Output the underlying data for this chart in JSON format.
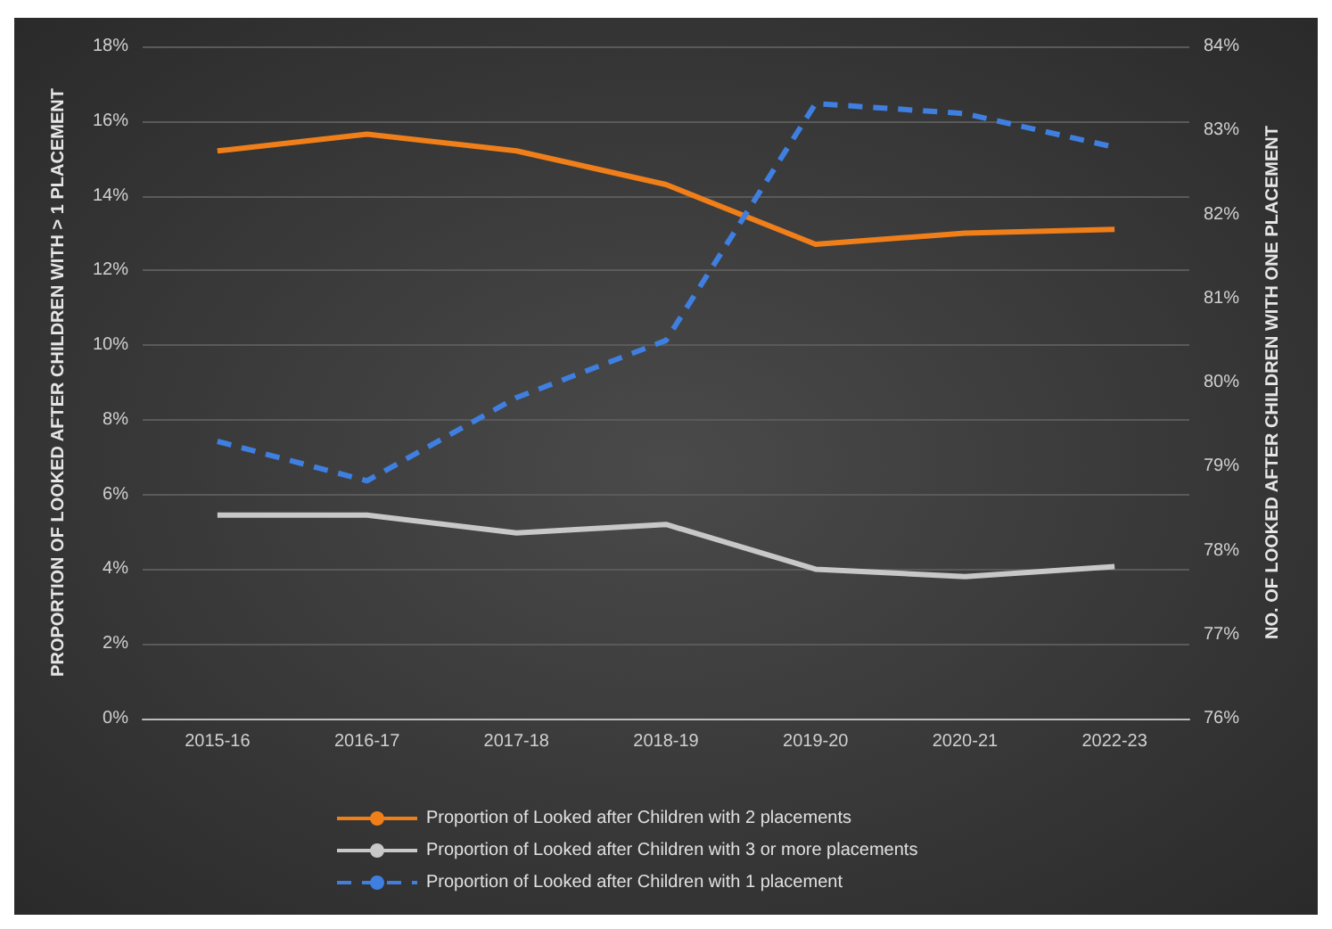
{
  "chart_data": {
    "type": "line",
    "ylabel": "PROPORTION OF LOOKED AFTER CHILDREN WITH > 1 PLACEMENT",
    "y2label": "NO. OF LOOKED AFTER CHILDREN WITH ONE PLACEMENT",
    "categories": [
      "2015-16",
      "2016-17",
      "2017-18",
      "2018-19",
      "2019-20",
      "2020-21",
      "2022-23"
    ],
    "series": [
      {
        "name": "Proportion of Looked after Children with 2 placements",
        "color": "#f07f1a",
        "values": [
          15.2,
          15.65,
          15.2,
          14.3,
          12.7,
          13.0,
          13.1
        ]
      },
      {
        "name": "Proportion of Looked after Children with 3 or more placements",
        "color": "#c8c8c8",
        "values": [
          5.45,
          5.45,
          4.97,
          5.2,
          4.0,
          3.8,
          4.07
        ]
      },
      {
        "name": "Proportion of Looked after Children with 1 placement",
        "color": "#3f7fe0",
        "axis": "y2",
        "line_style": "dashed",
        "values": [
          79.3,
          78.83,
          79.82,
          80.5,
          83.32,
          83.2,
          82.8
        ]
      }
    ],
    "ylim": [
      0,
      18
    ],
    "yticks": [
      {
        "value": 0,
        "label": "0%"
      },
      {
        "value": 2,
        "label": "2%"
      },
      {
        "value": 4,
        "label": "4%"
      },
      {
        "value": 6,
        "label": "6%"
      },
      {
        "value": 8,
        "label": "8%"
      },
      {
        "value": 10,
        "label": "10%"
      },
      {
        "value": 12,
        "label": "12%"
      },
      {
        "value": 14,
        "label": "14%"
      },
      {
        "value": 16,
        "label": "16%"
      },
      {
        "value": 18,
        "label": "18%"
      }
    ],
    "y2lim": [
      76,
      84
    ],
    "y2ticks": [
      {
        "value": 76,
        "label": "76%"
      },
      {
        "value": 77,
        "label": "77%"
      },
      {
        "value": 78,
        "label": "78%"
      },
      {
        "value": 79,
        "label": "79%"
      },
      {
        "value": 80,
        "label": "80%"
      },
      {
        "value": 81,
        "label": "81%"
      },
      {
        "value": 82,
        "label": "82%"
      },
      {
        "value": 83,
        "label": "83%"
      },
      {
        "value": 84,
        "label": "84%"
      }
    ],
    "grid": "y",
    "legend": "bottom",
    "marker": "none",
    "line_style": "solid"
  }
}
